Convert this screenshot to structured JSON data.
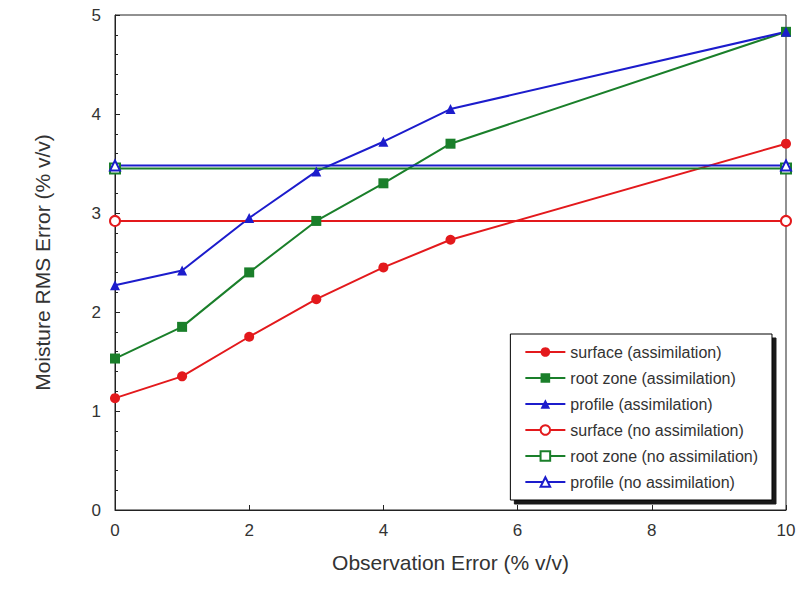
{
  "chart_data": {
    "type": "line",
    "x_label": "Observation Error (% v/v)",
    "y_label": "Moisture RMS Error (% v/v)",
    "xlim": [
      0,
      10
    ],
    "xticks": [
      0,
      2,
      4,
      6,
      8,
      10
    ],
    "ylim": [
      0,
      5
    ],
    "yticks": [
      0,
      1,
      2,
      3,
      4,
      5
    ],
    "grid": false,
    "legend": "lower right",
    "series": [
      {
        "name": "surface (assimilation)",
        "color": "#e3191c",
        "marker": "circle",
        "line_style": "solid",
        "x": [
          0,
          1,
          2,
          3,
          4,
          5,
          10
        ],
        "values": [
          1.13,
          1.35,
          1.75,
          2.13,
          2.45,
          2.73,
          3.7
        ]
      },
      {
        "name": "root zone (assimilation)",
        "color": "#1a7f2a",
        "marker": "square",
        "line_style": "solid",
        "x": [
          0,
          1,
          2,
          3,
          4,
          5,
          10
        ],
        "values": [
          1.53,
          1.85,
          2.4,
          2.92,
          3.3,
          3.7,
          4.83
        ]
      },
      {
        "name": "profile (assimilation)",
        "color": "#1c1ccc",
        "marker": "triangle",
        "line_style": "solid",
        "x": [
          0,
          1,
          2,
          3,
          4,
          5,
          10
        ],
        "values": [
          2.27,
          2.42,
          2.95,
          3.42,
          3.72,
          4.05,
          4.83
        ]
      },
      {
        "name": "surface (no assimilation)",
        "color": "#e3191c",
        "marker": "open_circle",
        "line_style": "solid",
        "x": [
          0,
          10
        ],
        "values": [
          2.92,
          2.92
        ]
      },
      {
        "name": "root zone (no assimilation)",
        "color": "#1a7f2a",
        "marker": "open_square",
        "line_style": "solid",
        "x": [
          0,
          10
        ],
        "values": [
          3.45,
          3.45
        ]
      },
      {
        "name": "profile (no assimilation)",
        "color": "#1c1ccc",
        "marker": "open_triangle",
        "line_style": "solid",
        "x": [
          0,
          10
        ],
        "values": [
          3.48,
          3.48
        ]
      }
    ]
  }
}
